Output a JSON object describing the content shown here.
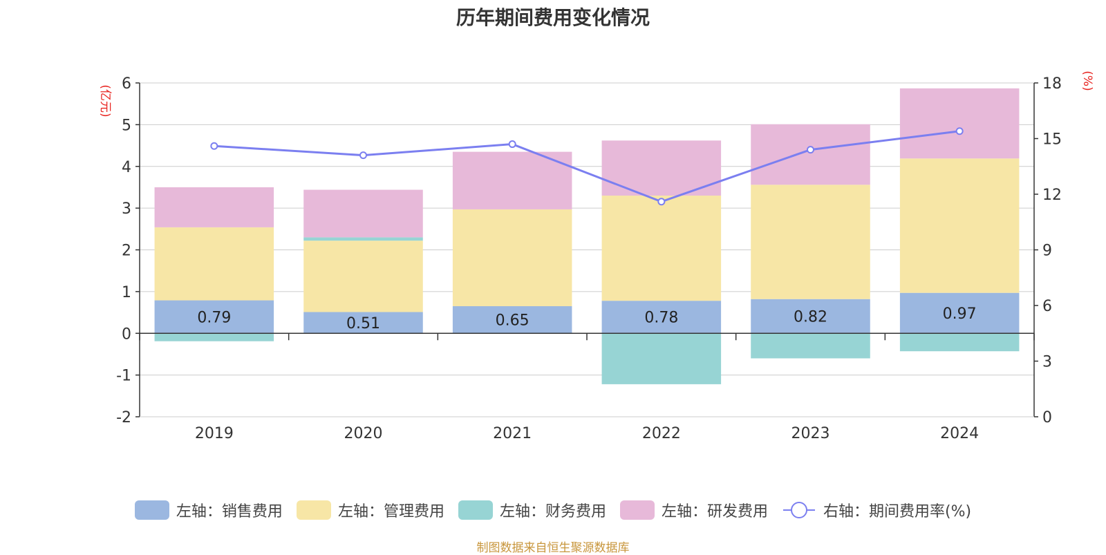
{
  "chart_data": {
    "type": "bar",
    "title": "历年期间费用变化情况",
    "categories": [
      "2019",
      "2020",
      "2021",
      "2022",
      "2023",
      "2024"
    ],
    "stacked": true,
    "y_left": {
      "label": "(亿元)",
      "ylim": [
        -2,
        6
      ],
      "ticks": [
        -2,
        -1,
        0,
        1,
        2,
        3,
        4,
        5,
        6
      ]
    },
    "y_right": {
      "label": "(%)",
      "ylim": [
        0,
        18
      ],
      "ticks": [
        0,
        3,
        6,
        9,
        12,
        15,
        18
      ]
    },
    "series": [
      {
        "name": "左轴：销售费用",
        "axis": "left",
        "type": "bar",
        "color": "#9bb7e0",
        "values": [
          0.79,
          0.51,
          0.65,
          0.78,
          0.82,
          0.97
        ],
        "show_labels": true
      },
      {
        "name": "左轴：管理费用",
        "axis": "left",
        "type": "bar",
        "color": "#f7e6a6",
        "values": [
          1.75,
          1.71,
          2.32,
          2.52,
          2.74,
          3.22
        ]
      },
      {
        "name": "左轴：财务费用",
        "axis": "left",
        "type": "bar",
        "color": "#97d4d4",
        "values": [
          -0.19,
          0.08,
          0.0,
          -1.22,
          -0.6,
          -0.43
        ]
      },
      {
        "name": "左轴：研发费用",
        "axis": "left",
        "type": "bar",
        "color": "#e7b9d9",
        "values": [
          0.96,
          1.14,
          1.38,
          1.32,
          1.45,
          1.68
        ]
      },
      {
        "name": "右轴：期间费用率(%)",
        "axis": "right",
        "type": "line",
        "color": "#7b7ff0",
        "values": [
          14.6,
          14.1,
          14.7,
          11.6,
          14.4,
          15.4
        ]
      }
    ],
    "grid": true,
    "legend_position": "bottom"
  },
  "source_text": "制图数据来自恒生聚源数据库"
}
